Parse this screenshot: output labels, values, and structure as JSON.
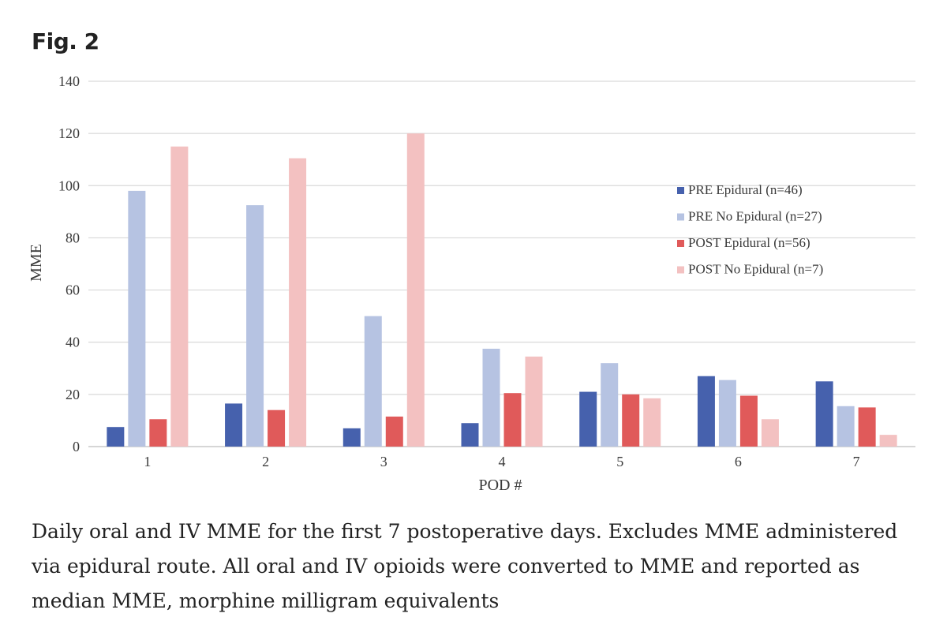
{
  "figure": {
    "label": "Fig. 2",
    "caption": "Daily oral and IV MME for the first 7 postoperative days. Excludes MME administered via epidural route. All oral and IV opioids were converted to MME and reported as median MME, morphine milligram equivalents"
  },
  "chart_data": {
    "type": "bar",
    "title": "",
    "xlabel": "POD #",
    "ylabel": "MME",
    "ylim": [
      0,
      140
    ],
    "yticks": [
      0,
      20,
      40,
      60,
      80,
      100,
      120,
      140
    ],
    "grid": true,
    "legend_position": "right",
    "categories": [
      "1",
      "2",
      "3",
      "4",
      "5",
      "6",
      "7"
    ],
    "series": [
      {
        "name": "PRE Epidural (n=46)",
        "color": "#4661ad",
        "values": [
          7.5,
          16.5,
          7,
          9,
          21,
          27,
          25
        ]
      },
      {
        "name": "PRE No Epidural (n=27)",
        "color": "#b6c3e2",
        "values": [
          98,
          92.5,
          50,
          37.5,
          32,
          25.5,
          15.5
        ]
      },
      {
        "name": "POST Epidural (n=56)",
        "color": "#e05a5a",
        "values": [
          10.5,
          14,
          11.5,
          20.5,
          20,
          19.5,
          15
        ]
      },
      {
        "name": "POST No Epidural (n=7)",
        "color": "#f3c1c1",
        "values": [
          115,
          110.5,
          120,
          34.5,
          18.5,
          10.5,
          4.5
        ]
      }
    ]
  }
}
